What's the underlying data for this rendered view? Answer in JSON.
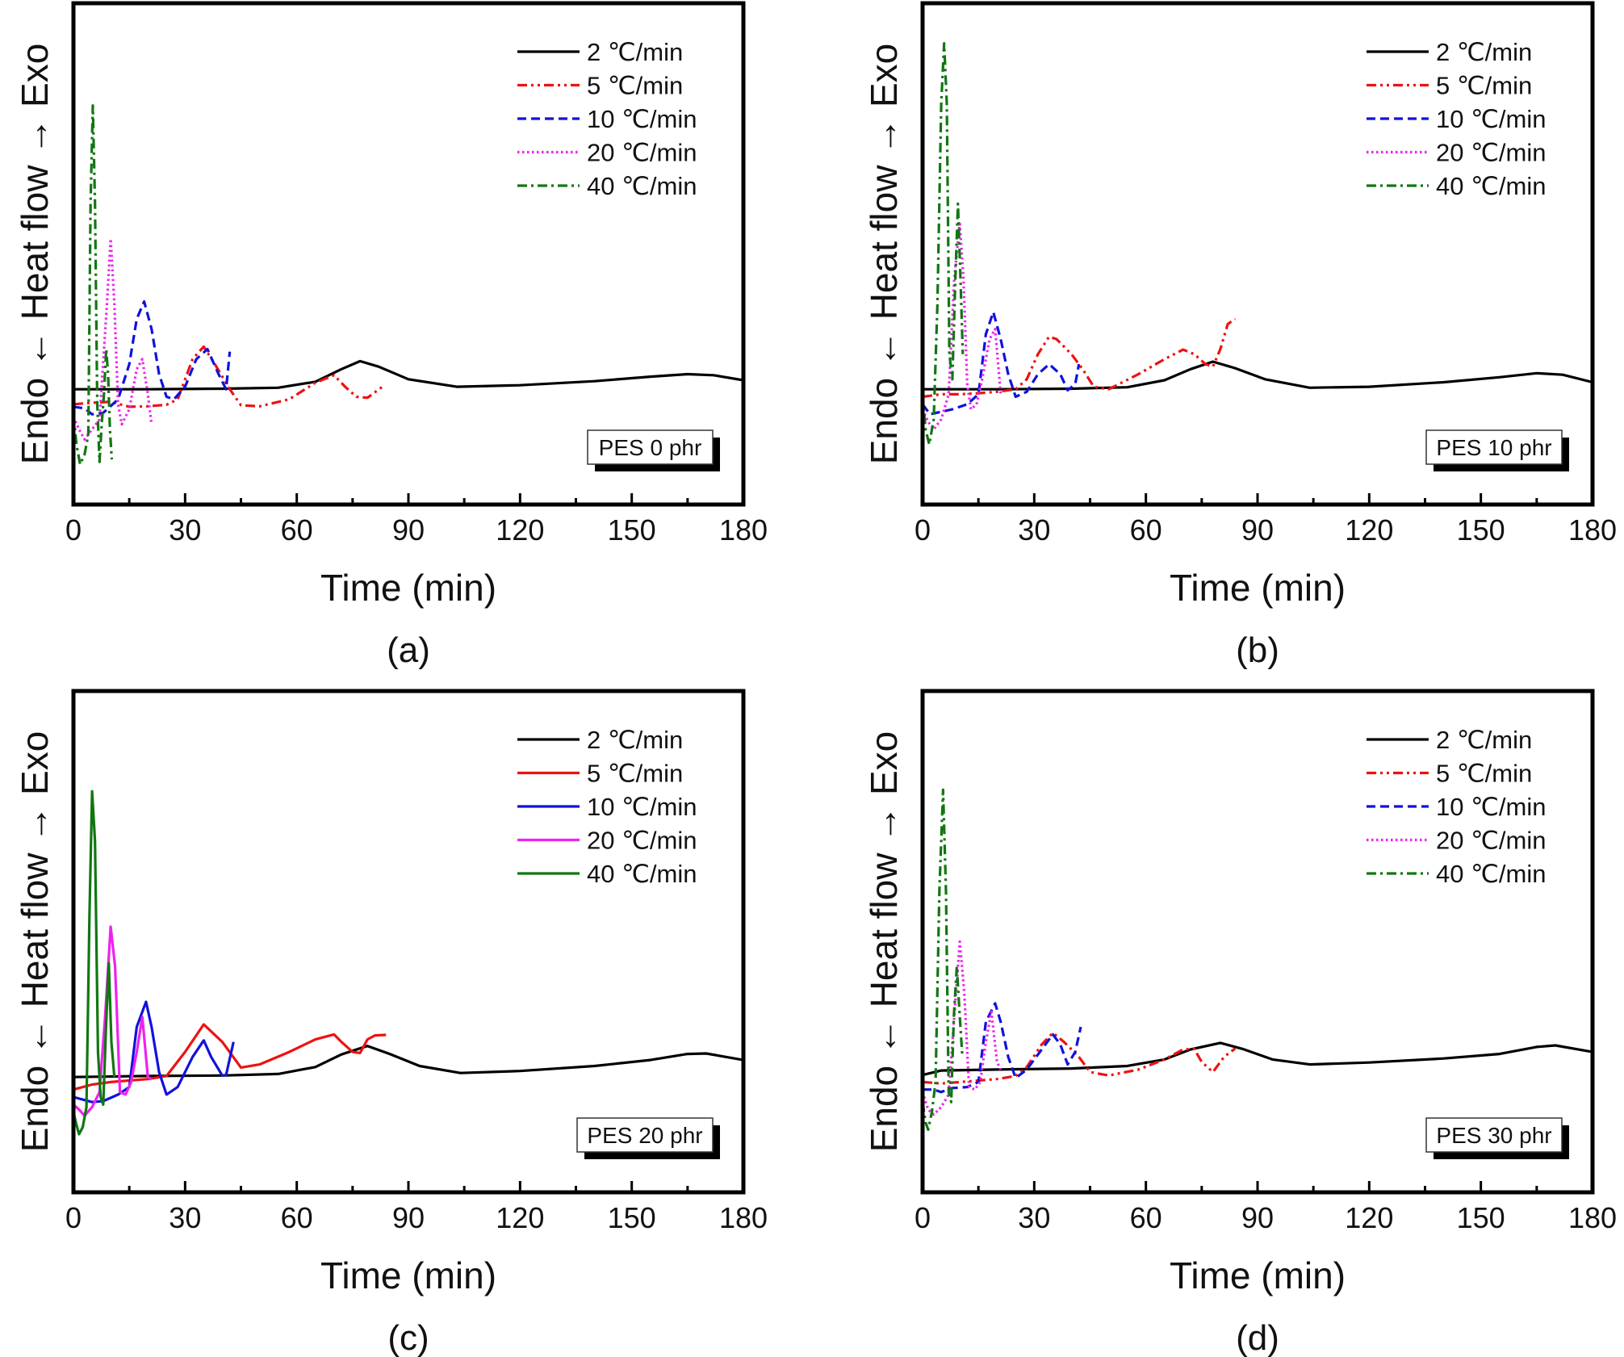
{
  "figure": {
    "description": "Non-isothermal DSC heat-flow curves at different heating rates for four PES loadings"
  },
  "chart_data": [
    {
      "type": "line",
      "panel": "(a)",
      "sample_label": "PES 0 phr",
      "xlabel": "Time (min)",
      "ylabel": "Endo ← Heat flow → Exo",
      "xlim": [
        0,
        180
      ],
      "ylim": [
        0,
        100
      ],
      "y_units": "arbitrary (normalized heat flow, axis unlabeled)",
      "x_ticks": [
        0,
        30,
        60,
        90,
        120,
        150,
        180
      ],
      "x_minor_ticks": [
        15,
        45,
        75,
        105,
        135,
        165
      ],
      "grid": false,
      "legend_position": "top-right",
      "line_style": "mixed",
      "series": [
        {
          "name": "2 ℃/min",
          "color": "#000000",
          "dash": "solid",
          "x": [
            0,
            20,
            40,
            55,
            65,
            72,
            77,
            82,
            90,
            103,
            120,
            140,
            155,
            165,
            172,
            180
          ],
          "y": [
            23,
            23,
            23.1,
            23.3,
            24.5,
            27,
            28.6,
            27.5,
            25,
            23.5,
            23.8,
            24.6,
            25.5,
            26,
            25.8,
            24.8
          ]
        },
        {
          "name": "5 ℃/min",
          "color": "#ee1111",
          "dash": "dashdotdot",
          "x": [
            0,
            5,
            10,
            15,
            20,
            25,
            28,
            32,
            35,
            38,
            42,
            45,
            50,
            58,
            65,
            70,
            73,
            76,
            79,
            83
          ],
          "y": [
            20,
            20.3,
            20.5,
            19.5,
            19.6,
            19.9,
            21,
            29,
            31.5,
            28,
            23,
            19.8,
            19.6,
            21,
            24.3,
            25.8,
            23.5,
            21.5,
            21.3,
            23.5
          ]
        },
        {
          "name": "10 ℃/min",
          "color": "#1111dd",
          "dash": "dashed",
          "x": [
            0,
            3,
            5,
            8,
            12,
            15,
            17,
            19,
            21,
            23,
            25,
            27,
            30,
            33,
            36,
            39,
            41,
            42
          ],
          "y": [
            19.5,
            19.2,
            18,
            18.3,
            21,
            28,
            37,
            40.5,
            35,
            26,
            21.5,
            21,
            23.5,
            29,
            31,
            26,
            23,
            30.5
          ]
        },
        {
          "name": "20 ℃/min",
          "color": "#ee22ee",
          "dash": "dotted",
          "x": [
            0,
            1.5,
            3,
            5,
            7,
            9,
            10,
            11,
            12,
            13,
            15,
            17,
            18.5,
            20,
            21
          ],
          "y": [
            17.5,
            15,
            13,
            15,
            17,
            40,
            53,
            40,
            20,
            16,
            19,
            27,
            29,
            22,
            16
          ]
        },
        {
          "name": "40 ℃/min",
          "color": "#117711",
          "dash": "dashdot",
          "x": [
            0,
            0.8,
            1.8,
            3,
            4,
            4.6,
            5.2,
            5.8,
            6.4,
            7,
            7.6,
            8.2,
            8.8,
            9.3,
            9.8,
            10.3
          ],
          "y": [
            18,
            12,
            8,
            10,
            14,
            60,
            79.6,
            60,
            20,
            8.5,
            16,
            22,
            31,
            26,
            15,
            9
          ]
        }
      ]
    },
    {
      "type": "line",
      "panel": "(b)",
      "sample_label": "PES 10 phr",
      "xlabel": "Time (min)",
      "ylabel": "Endo ← Heat flow → Exo",
      "xlim": [
        0,
        180
      ],
      "ylim": [
        0,
        100
      ],
      "y_units": "arbitrary (normalized heat flow, axis unlabeled)",
      "x_ticks": [
        0,
        30,
        60,
        90,
        120,
        150,
        180
      ],
      "x_minor_ticks": [
        15,
        45,
        75,
        105,
        135,
        165
      ],
      "grid": false,
      "legend_position": "top-right",
      "line_style": "mixed",
      "series": [
        {
          "name": "2 ℃/min",
          "color": "#000000",
          "dash": "solid",
          "x": [
            0,
            20,
            40,
            55,
            65,
            72,
            78,
            84,
            92,
            104,
            120,
            140,
            155,
            165,
            172,
            180
          ],
          "y": [
            23,
            23,
            23.1,
            23.4,
            24.8,
            27,
            28.5,
            27.2,
            25,
            23.3,
            23.5,
            24.4,
            25.4,
            26.2,
            25.9,
            24.4
          ]
        },
        {
          "name": "5 ℃/min",
          "color": "#ee1111",
          "dash": "dashdotdot",
          "x": [
            0,
            5,
            10,
            15,
            20,
            25,
            28,
            31,
            34,
            36,
            40,
            43,
            46,
            50,
            58,
            65,
            70,
            73,
            76,
            78,
            80,
            82,
            84
          ],
          "y": [
            21.5,
            22,
            22,
            22.2,
            22.5,
            23,
            25,
            30,
            33.5,
            33,
            30,
            27,
            23.5,
            23,
            26,
            29,
            30.9,
            30,
            28,
            27.5,
            31,
            36,
            37
          ]
        },
        {
          "name": "10 ℃/min",
          "color": "#1111dd",
          "dash": "dashed",
          "x": [
            0,
            2,
            5,
            8,
            12,
            15,
            17,
            19,
            21,
            23,
            25,
            28,
            31,
            34,
            37,
            39,
            41,
            42
          ],
          "y": [
            20,
            18,
            18.5,
            19,
            20,
            22,
            34,
            38.4,
            33,
            26,
            21.5,
            22.5,
            26,
            28,
            26,
            22.8,
            24,
            28
          ]
        },
        {
          "name": "20 ℃/min",
          "color": "#ee22ee",
          "dash": "dotted",
          "x": [
            0,
            1.5,
            3,
            5,
            7,
            8.5,
            10,
            11,
            12,
            13,
            14.5,
            16,
            18,
            19.5,
            21
          ],
          "y": [
            19,
            16.5,
            15,
            17,
            22,
            45,
            56,
            45,
            24,
            19,
            20,
            25,
            33,
            35,
            22
          ]
        },
        {
          "name": "40 ℃/min",
          "color": "#117711",
          "dash": "dashdot",
          "x": [
            0,
            0.8,
            1.8,
            3,
            4,
            5,
            5.8,
            6.5,
            7.2,
            8,
            8.8,
            9.5,
            10.2,
            10.8
          ],
          "y": [
            22,
            15,
            12,
            17,
            40,
            80,
            92,
            80,
            30,
            25,
            45,
            60,
            45,
            30
          ]
        }
      ]
    },
    {
      "type": "line",
      "panel": "(c)",
      "sample_label": "PES 20 phr",
      "xlabel": "Time (min)",
      "ylabel": "Endo ← Heat flow → Exo",
      "xlim": [
        0,
        180
      ],
      "ylim": [
        0,
        100
      ],
      "y_units": "arbitrary (normalized heat flow, axis unlabeled)",
      "x_ticks": [
        0,
        30,
        60,
        90,
        120,
        150,
        180
      ],
      "x_minor_ticks": [
        15,
        45,
        75,
        105,
        135,
        165
      ],
      "grid": false,
      "legend_position": "top-right",
      "line_style": "solid",
      "series": [
        {
          "name": "2 ℃/min",
          "color": "#000000",
          "dash": "solid",
          "x": [
            0,
            20,
            40,
            55,
            65,
            72,
            79,
            85,
            93,
            104,
            120,
            140,
            155,
            165,
            170,
            180
          ],
          "y": [
            23,
            23.2,
            23.3,
            23.6,
            25,
            27.5,
            29.2,
            27.6,
            25.2,
            23.8,
            24.2,
            25.2,
            26.4,
            27.6,
            27.7,
            26.4
          ]
        },
        {
          "name": "5 ℃/min",
          "color": "#ee1111",
          "dash": "solid",
          "x": [
            0,
            5,
            10,
            15,
            20,
            25,
            30,
            35,
            40,
            45,
            50,
            58,
            65,
            70,
            72,
            75,
            77,
            79,
            81,
            84
          ],
          "y": [
            20.5,
            21.5,
            22,
            22.3,
            22.6,
            23.2,
            28,
            33.5,
            30,
            24.9,
            25.5,
            28,
            30.5,
            31.5,
            30,
            28,
            27.8,
            30.5,
            31.3,
            31.4
          ]
        },
        {
          "name": "10 ℃/min",
          "color": "#1111dd",
          "dash": "solid",
          "x": [
            0,
            3,
            5,
            8,
            12,
            15,
            17,
            19.5,
            21,
            23,
            25,
            28,
            32,
            35,
            37,
            40,
            41,
            43
          ],
          "y": [
            19,
            18.4,
            18,
            18.2,
            19.5,
            21,
            33,
            38,
            33,
            24,
            19.5,
            21,
            27,
            30.3,
            27,
            23.3,
            23.4,
            30
          ]
        },
        {
          "name": "20 ℃/min",
          "color": "#ee22ee",
          "dash": "solid",
          "x": [
            0,
            1.5,
            3,
            5,
            7,
            8.5,
            10,
            11.2,
            12.5,
            14,
            15.5,
            17,
            18.5,
            20,
            21
          ],
          "y": [
            17.5,
            16.5,
            15.3,
            17,
            20,
            35,
            53,
            45,
            20,
            19.5,
            22,
            28,
            35,
            23,
            22.5
          ]
        },
        {
          "name": "40 ℃/min",
          "color": "#117711",
          "dash": "solid",
          "x": [
            0,
            0.8,
            1.5,
            2.5,
            3.5,
            4.3,
            5,
            5.8,
            6.6,
            7.3,
            8,
            8.8,
            9.5,
            10.2,
            11
          ],
          "y": [
            16,
            13.5,
            11.6,
            13,
            17,
            55,
            80,
            70,
            28,
            19,
            17.5,
            34,
            45.7,
            30,
            23
          ]
        }
      ]
    },
    {
      "type": "line",
      "panel": "(d)",
      "sample_label": "PES 30 phr",
      "xlabel": "Time (min)",
      "ylabel": "Endo ← Heat flow → Exo",
      "xlim": [
        0,
        180
      ],
      "ylim": [
        0,
        100
      ],
      "y_units": "arbitrary (normalized heat flow, axis unlabeled)",
      "x_ticks": [
        0,
        30,
        60,
        90,
        120,
        150,
        180
      ],
      "x_minor_ticks": [
        15,
        45,
        75,
        105,
        135,
        165
      ],
      "grid": false,
      "legend_position": "top-right",
      "line_style": "mixed",
      "series": [
        {
          "name": "2 ℃/min",
          "color": "#000000",
          "dash": "solid",
          "x": [
            0,
            5,
            20,
            40,
            55,
            65,
            72,
            80,
            86,
            94,
            104,
            120,
            140,
            155,
            165,
            170,
            180
          ],
          "y": [
            23.4,
            24.3,
            24.5,
            24.7,
            25.2,
            26.5,
            28.5,
            29.8,
            28.6,
            26.5,
            25.5,
            25.9,
            26.7,
            27.6,
            29,
            29.3,
            28
          ]
        },
        {
          "name": "5 ℃/min",
          "color": "#ee1111",
          "dash": "dashdotdot",
          "x": [
            0,
            5,
            10,
            15,
            20,
            25,
            28,
            32,
            35,
            38,
            42,
            45,
            50,
            58,
            65,
            70,
            73,
            75,
            78,
            81,
            84
          ],
          "y": [
            22,
            21.7,
            22,
            22.3,
            22.6,
            23.2,
            25,
            29.5,
            31.8,
            30,
            27,
            24,
            23.3,
            24.5,
            26.5,
            28.5,
            28.6,
            26,
            24,
            27,
            28.7
          ]
        },
        {
          "name": "10 ℃/min",
          "color": "#1111dd",
          "dash": "dashed",
          "x": [
            0,
            3,
            5,
            8,
            12,
            15,
            17,
            19.5,
            21,
            23,
            25,
            28,
            32,
            35,
            37,
            39,
            41,
            42.5
          ],
          "y": [
            20.5,
            20.5,
            20,
            20.8,
            21,
            22,
            34,
            37.7,
            34,
            27,
            22.8,
            24.5,
            28.5,
            31.5,
            29.5,
            25.5,
            28,
            33
          ]
        },
        {
          "name": "20 ℃/min",
          "color": "#ee22ee",
          "dash": "dotted",
          "x": [
            0,
            1.5,
            3,
            5,
            7,
            8.5,
            10,
            11.2,
            12.5,
            14,
            15.5,
            17,
            18.5,
            20,
            21
          ],
          "y": [
            20,
            16.5,
            15.5,
            17,
            19.5,
            35,
            50,
            40,
            21,
            20.5,
            22,
            30,
            36,
            26,
            24.5
          ]
        },
        {
          "name": "40 ℃/min",
          "color": "#117711",
          "dash": "dashdot",
          "x": [
            0,
            0.8,
            1.5,
            2.5,
            3.5,
            4.5,
            5.5,
            6.3,
            7,
            7.7,
            8.4,
            9.2,
            10,
            10.7
          ],
          "y": [
            18,
            14,
            12.5,
            16,
            22,
            60,
            80.3,
            60,
            20,
            18,
            35,
            45,
            35,
            27
          ]
        }
      ]
    }
  ]
}
